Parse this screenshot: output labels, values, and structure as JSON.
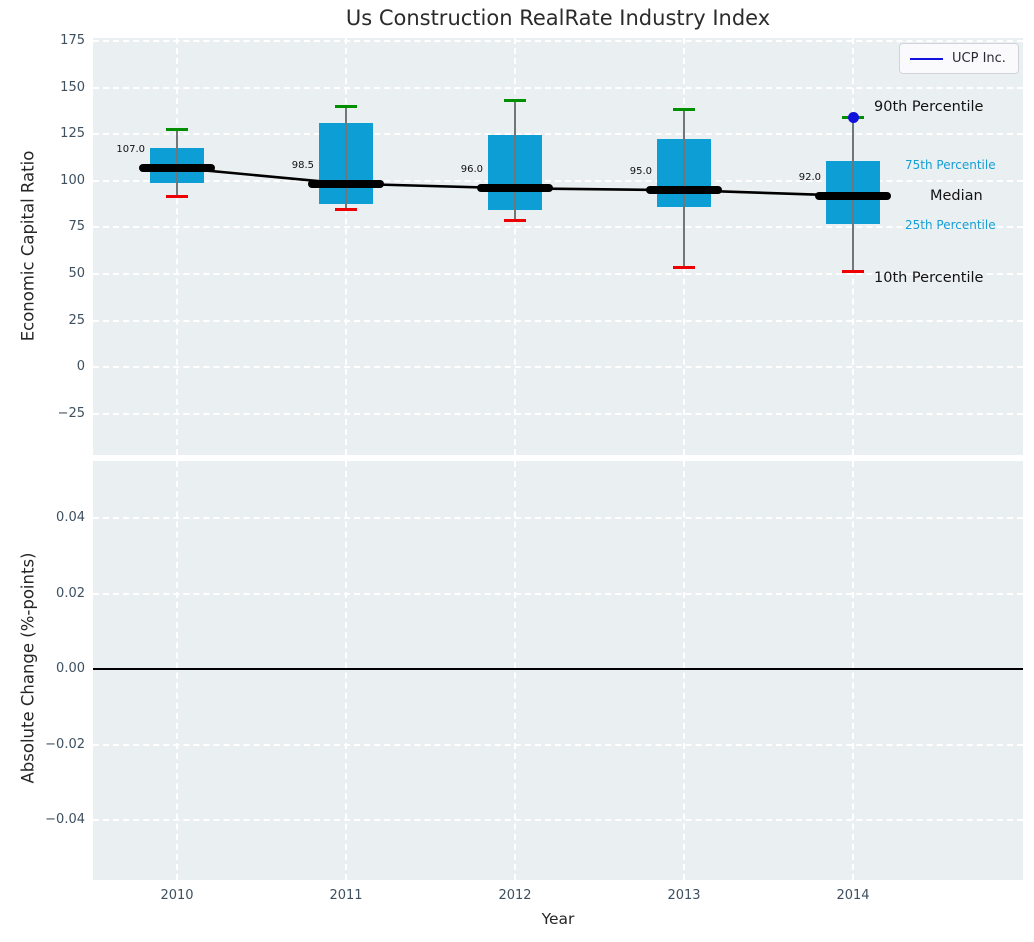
{
  "colors": {
    "plot_bg": "#eaeff1",
    "grid": "#ffffff",
    "box_fill": "#0d9ed5",
    "whisker": "#6f7777",
    "cap_top_green": "#008f00",
    "cap_bottom_red": "#ee0000",
    "median_black": "#000000",
    "trend_line": "#000000",
    "highlight_blue": "#1212dd",
    "tick_text": "#3e5060",
    "accent_label": "#149fd6"
  },
  "chart_data": [
    {
      "type": "boxplot",
      "panel": "top",
      "title": "Us Construction RealRate Industry Index",
      "ylabel": "Economic Capital Ratio",
      "ylim": [
        -47,
        176.6
      ],
      "grid": "white dashed",
      "yticks": [
        {
          "label": "175",
          "v": 175
        },
        {
          "label": "150",
          "v": 150
        },
        {
          "label": "125",
          "v": 125
        },
        {
          "label": "100",
          "v": 100
        },
        {
          "label": "75",
          "v": 75
        },
        {
          "label": "50",
          "v": 50
        },
        {
          "label": "25",
          "v": 25
        },
        {
          "label": "0",
          "v": 0
        },
        {
          "label": "−25",
          "v": -25
        }
      ],
      "categories": [
        "2010",
        "2011",
        "2012",
        "2013",
        "2014"
      ],
      "boxes": [
        {
          "year": "2010",
          "p10": 91.5,
          "p25": 99,
          "median": 107.0,
          "p75": 117.5,
          "p90": 127.5,
          "median_label": "107.0"
        },
        {
          "year": "2011",
          "p10": 84.5,
          "p25": 87.5,
          "median": 98.5,
          "p75": 131,
          "p90": 140,
          "median_label": "98.5"
        },
        {
          "year": "2012",
          "p10": 78.5,
          "p25": 84.5,
          "median": 96.0,
          "p75": 124.5,
          "p90": 143,
          "median_label": "96.0"
        },
        {
          "year": "2013",
          "p10": 53.5,
          "p25": 86,
          "median": 95.0,
          "p75": 122.5,
          "p90": 138.5,
          "median_label": "95.0"
        },
        {
          "year": "2014",
          "p10": 51.5,
          "p25": 77,
          "median": 92.0,
          "p75": 110.5,
          "p90": 134,
          "median_label": "92.0"
        }
      ],
      "median_series": {
        "name": "Median",
        "values": [
          107.0,
          98.5,
          96.0,
          95.0,
          92.0
        ]
      },
      "highlight_point": {
        "year": "2014",
        "value": 134
      },
      "percentile_annotations": [
        {
          "text": "90th Percentile",
          "anchor": "p90",
          "style": "dark"
        },
        {
          "text": "75th Percentile",
          "anchor": "p75",
          "style": "accent"
        },
        {
          "text": "Median",
          "anchor": "median",
          "style": "dark"
        },
        {
          "text": "25th Percentile",
          "anchor": "p25",
          "style": "accent"
        },
        {
          "text": "10th Percentile",
          "anchor": "p10",
          "style": "dark"
        }
      ],
      "legend": [
        {
          "label": "UCP Inc."
        }
      ],
      "legend_position": "upper right"
    },
    {
      "type": "line",
      "panel": "bottom",
      "ylabel": "Absolute Change (%-points)",
      "xlabel": "Year",
      "ylim": [
        -0.0559,
        0.0551
      ],
      "grid": "white dashed",
      "yticks": [
        {
          "label": "0.04",
          "v": 0.04
        },
        {
          "label": "0.02",
          "v": 0.02
        },
        {
          "label": "0.00",
          "v": 0.0
        },
        {
          "label": "−0.02",
          "v": -0.02
        },
        {
          "label": "−0.04",
          "v": -0.04
        }
      ],
      "categories": [
        "2010",
        "2011",
        "2012",
        "2013",
        "2014"
      ],
      "series": [],
      "zero_line": 0.0
    }
  ]
}
